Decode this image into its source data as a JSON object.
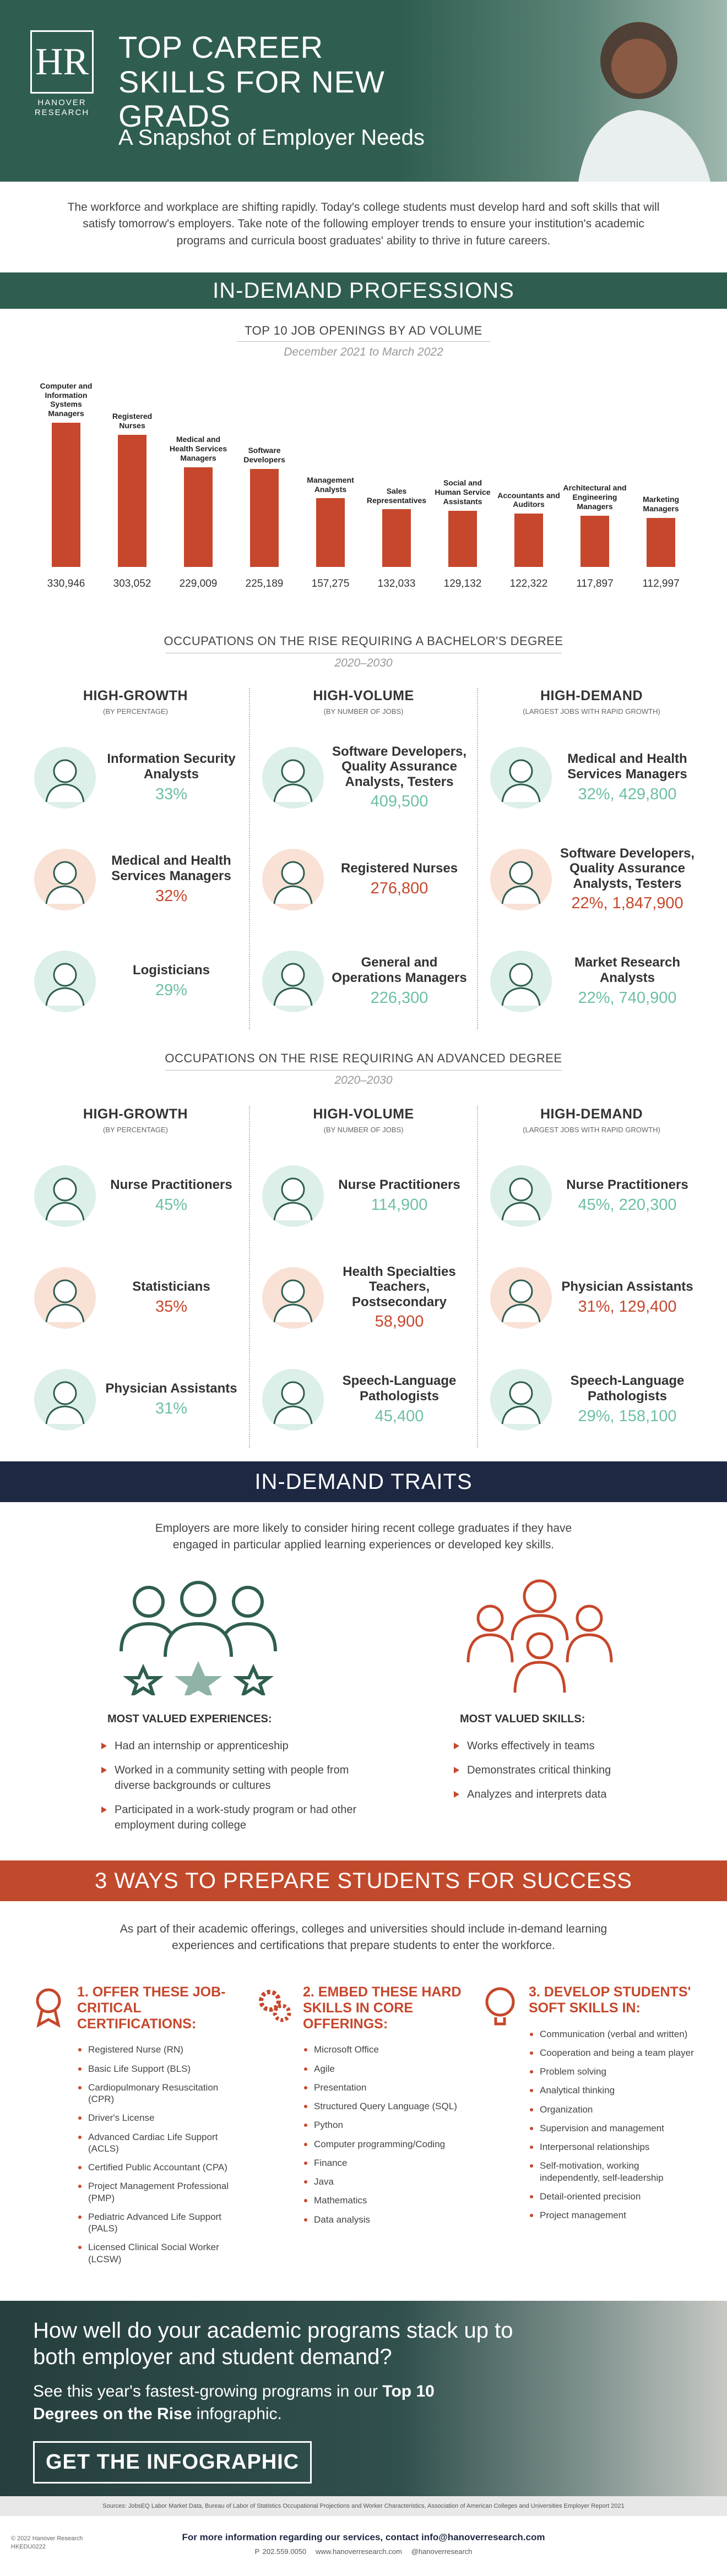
{
  "header": {
    "logo_mark": "HR",
    "logo_line1": "HANOVER",
    "logo_line2": "RESEARCH",
    "title": "TOP CAREER SKILLS FOR NEW GRADS",
    "subtitle": "A Snapshot of Employer Needs"
  },
  "intro": "The workforce and workplace are shifting rapidly. Today's college students must develop hard and soft skills that will satisfy tomorrow's employers. Take note of the following employer trends to ensure your institution's academic programs and curricula boost graduates' ability to thrive in future careers.",
  "professions_heading": "IN-DEMAND PROFESSIONS",
  "chart_data": {
    "type": "bar",
    "title": "TOP 10 JOB OPENINGS BY AD VOLUME",
    "subtitle": "December 2021 to March 2022",
    "categories": [
      "Computer and Information Systems Managers",
      "Registered Nurses",
      "Medical and Health Services Managers",
      "Software Developers",
      "Management Analysts",
      "Sales Representatives",
      "Social and Human Service Assistants",
      "Accountants and Auditors",
      "Architectural and Engineering Managers",
      "Marketing Managers"
    ],
    "values": [
      330946,
      303052,
      229009,
      225189,
      157275,
      132033,
      129132,
      122322,
      117897,
      112997
    ],
    "value_labels": [
      "330,946",
      "303,052",
      "229,009",
      "225,189",
      "157,275",
      "132,033",
      "129,132",
      "122,322",
      "117,897",
      "112,997"
    ],
    "color": "#c6472b"
  },
  "bachelor": {
    "title": "OCCUPATIONS ON THE RISE REQUIRING A BACHELOR'S DEGREE",
    "period": "2020–2030",
    "columns": [
      {
        "title": "HIGH-GROWTH",
        "subtitle": "(BY PERCENTAGE)",
        "items": [
          {
            "name": "Information Security Analysts",
            "stat": "33%",
            "color": "#6dbfa5"
          },
          {
            "name": "Medical and Health Services Managers",
            "stat": "32%",
            "color": "#c6472b"
          },
          {
            "name": "Logisticians",
            "stat": "29%",
            "color": "#6dbfa5"
          }
        ]
      },
      {
        "title": "HIGH-VOLUME",
        "subtitle": "(BY NUMBER OF JOBS)",
        "items": [
          {
            "name": "Software Developers, Quality Assurance Analysts, Testers",
            "stat": "409,500",
            "color": "#6dbfa5"
          },
          {
            "name": "Registered Nurses",
            "stat": "276,800",
            "color": "#c6472b"
          },
          {
            "name": "General and Operations Managers",
            "stat": "226,300",
            "color": "#6dbfa5"
          }
        ]
      },
      {
        "title": "HIGH-DEMAND",
        "subtitle": "(LARGEST JOBS WITH RAPID GROWTH)",
        "items": [
          {
            "name": "Medical and Health Services Managers",
            "stat": "32%, 429,800",
            "color": "#6dbfa5"
          },
          {
            "name": "Software Developers, Quality Assurance Analysts, Testers",
            "stat": "22%, 1,847,900",
            "color": "#c6472b"
          },
          {
            "name": "Market Research Analysts",
            "stat": "22%, 740,900",
            "color": "#6dbfa5"
          }
        ]
      }
    ]
  },
  "advanced": {
    "title": "OCCUPATIONS ON THE RISE REQUIRING AN ADVANCED DEGREE",
    "period": "2020–2030",
    "columns": [
      {
        "title": "HIGH-GROWTH",
        "subtitle": "(BY PERCENTAGE)",
        "items": [
          {
            "name": "Nurse Practitioners",
            "stat": "45%",
            "color": "#6dbfa5"
          },
          {
            "name": "Statisticians",
            "stat": "35%",
            "color": "#c6472b"
          },
          {
            "name": "Physician Assistants",
            "stat": "31%",
            "color": "#6dbfa5"
          }
        ]
      },
      {
        "title": "HIGH-VOLUME",
        "subtitle": "(BY NUMBER OF JOBS)",
        "items": [
          {
            "name": "Nurse Practitioners",
            "stat": "114,900",
            "color": "#6dbfa5"
          },
          {
            "name": "Health Specialties Teachers, Postsecondary",
            "stat": "58,900",
            "color": "#c6472b"
          },
          {
            "name": "Speech-Language Pathologists",
            "stat": "45,400",
            "color": "#6dbfa5"
          }
        ]
      },
      {
        "title": "HIGH-DEMAND",
        "subtitle": "(LARGEST JOBS WITH RAPID GROWTH)",
        "items": [
          {
            "name": "Nurse Practitioners",
            "stat": "45%, 220,300",
            "color": "#6dbfa5"
          },
          {
            "name": "Physician Assistants",
            "stat": "31%, 129,400",
            "color": "#c6472b"
          },
          {
            "name": "Speech-Language Pathologists",
            "stat": "29%, 158,100",
            "color": "#6dbfa5"
          }
        ]
      }
    ]
  },
  "traits": {
    "heading": "IN-DEMAND TRAITS",
    "text": "Employers are more likely to consider hiring recent college graduates if they have engaged in particular applied learning experiences or developed key skills.",
    "experiences": {
      "title": "MOST VALUED EXPERIENCES:",
      "items": [
        "Had an internship or apprenticeship",
        "Worked in a community setting with people from diverse backgrounds or cultures",
        "Participated in a work-study program or had other employment during college"
      ]
    },
    "skills": {
      "title": "MOST VALUED SKILLS:",
      "items": [
        "Works effectively in teams",
        "Demonstrates critical thinking",
        "Analyzes and interprets data"
      ]
    }
  },
  "prepare": {
    "heading": "3 WAYS TO PREPARE STUDENTS FOR SUCCESS",
    "text": "As part of their academic offerings, colleges and universities should include in-demand learning experiences and certifications that prepare students to enter the workforce.",
    "columns": [
      {
        "title": "1. OFFER THESE JOB-CRITICAL CERTIFICATIONS:",
        "items": [
          "Registered Nurse (RN)",
          "Basic Life Support (BLS)",
          "Cardiopulmonary Resuscitation (CPR)",
          "Driver's License",
          "Advanced Cardiac Life Support (ACLS)",
          "Certified Public Accountant (CPA)",
          "Project Management Professional (PMP)",
          "Pediatric Advanced Life Support (PALS)",
          "Licensed Clinical Social Worker (LCSW)"
        ]
      },
      {
        "title": "2. EMBED THESE HARD SKILLS IN CORE OFFERINGS:",
        "items": [
          "Microsoft Office",
          "Agile",
          "Presentation",
          "Structured Query Language (SQL)",
          "Python",
          "Computer programming/Coding",
          "Finance",
          "Java",
          "Mathematics",
          "Data analysis"
        ]
      },
      {
        "title": "3. DEVELOP STUDENTS' SOFT SKILLS IN:",
        "items": [
          "Communication (verbal and written)",
          "Cooperation and being a team player",
          "Problem solving",
          "Analytical thinking",
          "Organization",
          "Supervision and management",
          "Interpersonal relationships",
          "Self-motivation, working independently, self-leadership",
          "Detail-oriented precision",
          "Project management"
        ]
      }
    ]
  },
  "cta": {
    "question": "How well do your academic programs stack up to both employer and student demand?",
    "text": "See this year's fastest-growing programs in our",
    "link": "Top 10 Degrees on the Rise",
    "text_end": "infographic.",
    "button": "GET THE INFOGRAPHIC"
  },
  "footer": {
    "sources": "Sources: JobsEQ Labor Market Data, Bureau of Labor of Statistics Occupational Projections and Worker Characteristics, Association of American Colleges and Universities Employer Report 2021",
    "copyright": "© 2022 Hanover Research",
    "code": "HKEDU0222",
    "contact": "For more information regarding our services, contact info@hanoverresearch.com",
    "phone": "P 202.559.0050",
    "web": "www.hanoverresearch.com",
    "social": "@hanoverresearch"
  }
}
